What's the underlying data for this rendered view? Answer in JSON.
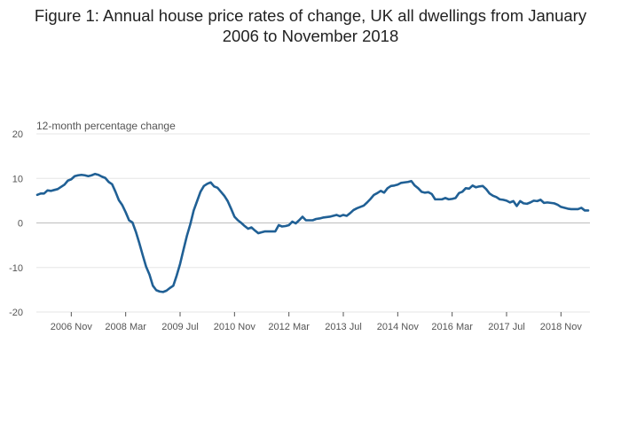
{
  "chart_data": {
    "type": "line",
    "title": "Figure 1: Annual house price rates of change, UK all dwellings from January 2006 to November 2018",
    "ylabel": "12-month percentage change",
    "xlabel": "",
    "ylim": [
      -20,
      20
    ],
    "y_ticks": [
      20,
      10,
      0,
      -10,
      -20
    ],
    "x_ticks": [
      {
        "label": "2006 Nov",
        "index": 10
      },
      {
        "label": "2008 Mar",
        "index": 26
      },
      {
        "label": "2009 Jul",
        "index": 42
      },
      {
        "label": "2010 Nov",
        "index": 58
      },
      {
        "label": "2012 Mar",
        "index": 74
      },
      {
        "label": "2013 Jul",
        "index": 90
      },
      {
        "label": "2014 Nov",
        "index": 106
      },
      {
        "label": "2016 Mar",
        "index": 122
      },
      {
        "label": "2017 Jul",
        "index": 138
      },
      {
        "label": "2018 Nov",
        "index": 154
      }
    ],
    "series": [
      {
        "name": "UK all dwellings",
        "color": "#206095",
        "start": "2006 Jan",
        "values": [
          6.3,
          6.6,
          6.6,
          7.3,
          7.2,
          7.4,
          7.6,
          8.1,
          8.6,
          9.5,
          9.8,
          10.5,
          10.7,
          10.8,
          10.7,
          10.5,
          10.7,
          11.0,
          10.8,
          10.4,
          10.1,
          9.2,
          8.7,
          7.0,
          5.1,
          4.0,
          2.4,
          0.6,
          0.1,
          -2.0,
          -4.5,
          -7.2,
          -9.8,
          -11.6,
          -14.1,
          -15.1,
          -15.4,
          -15.5,
          -15.2,
          -14.6,
          -14.1,
          -11.8,
          -9.2,
          -6.0,
          -2.9,
          -0.3,
          2.8,
          4.9,
          7.0,
          8.3,
          8.8,
          9.1,
          8.2,
          7.9,
          7.0,
          6.1,
          4.9,
          3.2,
          1.4,
          0.6,
          0.0,
          -0.7,
          -1.3,
          -1.0,
          -1.7,
          -2.3,
          -2.1,
          -1.9,
          -1.9,
          -1.9,
          -1.9,
          -0.5,
          -0.8,
          -0.7,
          -0.5,
          0.3,
          -0.1,
          0.6,
          1.4,
          0.6,
          0.6,
          0.6,
          0.9,
          1.0,
          1.2,
          1.3,
          1.4,
          1.6,
          1.8,
          1.5,
          1.8,
          1.6,
          2.2,
          2.9,
          3.3,
          3.6,
          3.9,
          4.6,
          5.4,
          6.3,
          6.7,
          7.2,
          6.8,
          7.8,
          8.3,
          8.4,
          8.6,
          9.0,
          9.1,
          9.2,
          9.4,
          8.4,
          7.8,
          7.0,
          6.8,
          6.9,
          6.5,
          5.3,
          5.3,
          5.3,
          5.6,
          5.3,
          5.4,
          5.6,
          6.7,
          7.0,
          7.8,
          7.7,
          8.4,
          8.0,
          8.2,
          8.3,
          7.6,
          6.6,
          6.1,
          5.8,
          5.3,
          5.2,
          5.0,
          4.6,
          4.9,
          3.8,
          4.9,
          4.4,
          4.3,
          4.6,
          5.0,
          4.9,
          5.2,
          4.5,
          4.6,
          4.5,
          4.4,
          4.1,
          3.6,
          3.4,
          3.2,
          3.1,
          3.1,
          3.1,
          3.4,
          2.8,
          2.8
        ]
      }
    ]
  }
}
